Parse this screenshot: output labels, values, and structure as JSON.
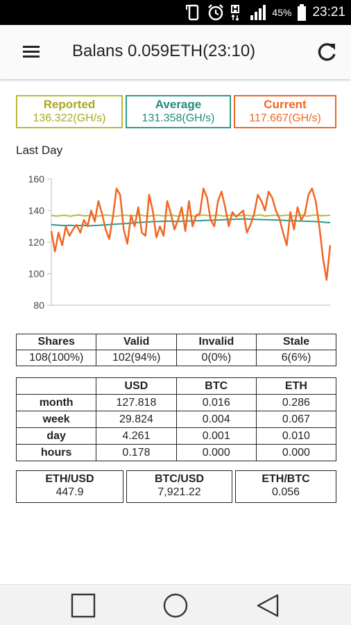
{
  "status_bar": {
    "battery_percent": "45%",
    "time": "23:21"
  },
  "app_bar": {
    "title": "Balans 0.059ETH(23:10)",
    "menu_icon": "hamburger-menu-icon",
    "refresh_icon": "refresh-icon"
  },
  "hashrates": {
    "reported": {
      "label": "Reported",
      "value": "136.322(GH/s)",
      "color": "#b5b83a"
    },
    "average": {
      "label": "Average",
      "value": "131.358(GH/s)",
      "color": "#2a9a8a"
    },
    "current": {
      "label": "Current",
      "value": "117.667(GH/s)",
      "color": "#f26522"
    }
  },
  "chart_data": {
    "type": "line",
    "title": "Last Day",
    "ylim": [
      80,
      160
    ],
    "yticks": [
      "80",
      "100",
      "120",
      "140",
      "160"
    ],
    "grid": false,
    "series": [
      {
        "color": "#b5b83a",
        "values": [
          137,
          136.5,
          136.8,
          137,
          136.4,
          136.9,
          137.2,
          136.6,
          136.8,
          137,
          136.5,
          136.9,
          137.1,
          136.7,
          136.4,
          136.9,
          137,
          136.6,
          136.8,
          137.3,
          136.7,
          136.5,
          136.9,
          137,
          136.6,
          136.8,
          137.1,
          136.5,
          136.9,
          137,
          136.7,
          136.4,
          136.9,
          137.2,
          136.6,
          136.8,
          137,
          136.5,
          136.9,
          137.1,
          136.7,
          136.8,
          137,
          136.6,
          136.9,
          137.2,
          136.5,
          136.8,
          137,
          136.7,
          136.9,
          137.1,
          136.6,
          136.8,
          137,
          136.5,
          136.9,
          137.2,
          136.7,
          136.8,
          137
        ]
      },
      {
        "color": "#2a9a8a",
        "values": [
          131,
          130.8,
          130.6,
          130.5,
          130.7,
          130.4,
          130.5,
          130.6,
          130.3,
          130.5,
          130.6,
          130.8,
          131,
          131.2,
          131.4,
          131.6,
          131.8,
          132,
          132.3,
          132.5,
          132.6,
          132.8,
          133,
          133.1,
          133.2,
          133.3,
          133.2,
          133.1,
          133.2,
          133.3,
          133.4,
          133.5,
          133.6,
          133.7,
          133.8,
          133.9,
          134,
          134.2,
          134.3,
          134.4,
          134.5,
          134.6,
          134.6,
          134.5,
          134.4,
          134.3,
          134.2,
          134.1,
          134,
          133.9,
          133.8,
          133.6,
          133.5,
          133.4,
          133.3,
          133.2,
          133.1,
          133,
          132.8,
          132.5,
          132.3
        ]
      },
      {
        "color": "#f26522",
        "values": [
          127,
          114,
          126,
          118,
          130,
          124,
          128,
          131,
          126,
          134,
          130,
          140,
          133,
          146,
          138,
          128,
          122,
          136,
          154,
          150,
          128,
          119,
          137,
          130,
          142,
          126,
          124,
          150,
          140,
          123,
          130,
          124,
          146,
          138,
          128,
          134,
          142,
          127,
          146,
          130,
          137,
          138,
          154,
          148,
          134,
          130,
          146,
          152,
          142,
          130,
          139,
          136,
          138,
          140,
          126,
          131,
          138,
          150,
          146,
          140,
          152,
          148,
          140,
          135,
          126,
          118,
          139,
          128,
          142,
          134,
          138,
          150,
          154,
          146,
          130,
          110,
          96,
          118
        ]
      }
    ]
  },
  "shares_table": {
    "headers": [
      "Shares",
      "Valid",
      "Invalid",
      "Stale"
    ],
    "values": [
      "108(100%)",
      "102(94%)",
      "0(0%)",
      "6(6%)"
    ]
  },
  "earnings_table": {
    "headers": [
      "",
      "USD",
      "BTC",
      "ETH"
    ],
    "rows": [
      {
        "label": "month",
        "usd": "127.818",
        "btc": "0.016",
        "eth": "0.286"
      },
      {
        "label": "week",
        "usd": "29.824",
        "btc": "0.004",
        "eth": "0.067"
      },
      {
        "label": "day",
        "usd": "4.261",
        "btc": "0.001",
        "eth": "0.010"
      },
      {
        "label": "hours",
        "usd": "0.178",
        "btc": "0.000",
        "eth": "0.000"
      }
    ]
  },
  "rates": {
    "eth_usd": {
      "label": "ETH/USD",
      "value": "447.9"
    },
    "btc_usd": {
      "label": "BTC/USD",
      "value": "7,921.22"
    },
    "eth_btc": {
      "label": "ETH/BTC",
      "value": "0.056"
    }
  }
}
